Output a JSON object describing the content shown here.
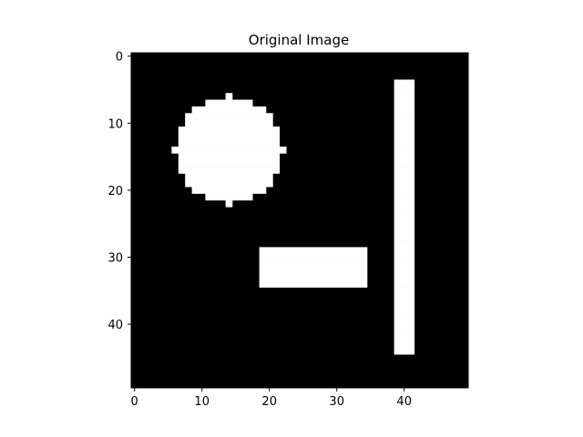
{
  "chart_data": {
    "type": "heatmap",
    "title": "Original Image",
    "xlabel": "",
    "ylabel": "",
    "image_size": [
      50,
      50
    ],
    "xlim": [
      -0.5,
      49.5
    ],
    "ylim": [
      49.5,
      -0.5
    ],
    "colormap": "gray",
    "colors": {
      "background": "#000000",
      "foreground": "#ffffff"
    },
    "xticks": [
      0,
      10,
      20,
      30,
      40
    ],
    "yticks": [
      0,
      10,
      20,
      30,
      40
    ],
    "shapes": [
      {
        "name": "circle",
        "kind": "disk",
        "center_col": 14,
        "center_row": 14,
        "radius": 8,
        "value": 1
      },
      {
        "name": "horizontal-rectangle",
        "kind": "rect",
        "cols": [
          19,
          34
        ],
        "rows": [
          29,
          34
        ],
        "value": 1
      },
      {
        "name": "vertical-rectangle",
        "kind": "rect",
        "cols": [
          39,
          41
        ],
        "rows": [
          4,
          44
        ],
        "value": 1
      }
    ]
  }
}
